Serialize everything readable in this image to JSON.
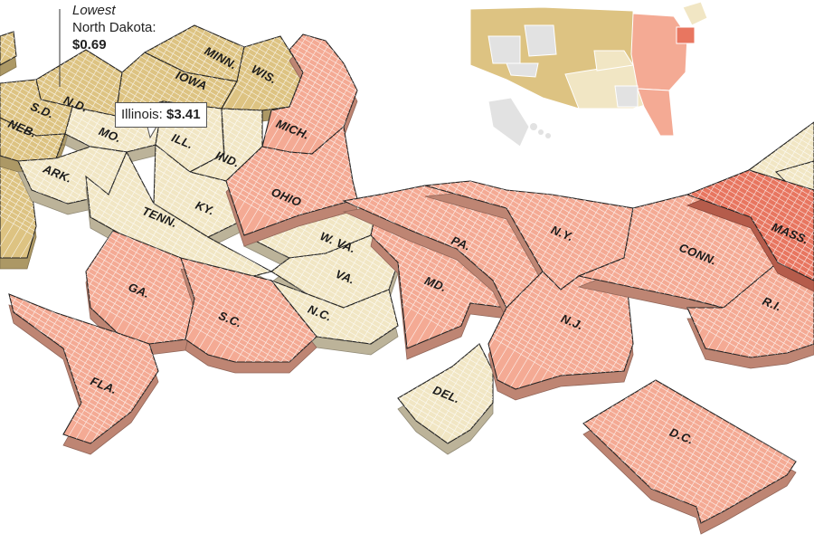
{
  "colors": {
    "low": "#ddc382",
    "mid": "#f1e6c4",
    "high": "#f4aa94",
    "highest": "#e87660",
    "gray": "#e2e2e2",
    "grid_line": "#ffffff",
    "border": "#222222"
  },
  "callouts": {
    "lowest": {
      "heading": "Lowest",
      "state": "North Dakota:",
      "price": "$0.69"
    },
    "illinois": {
      "state": "Illinois:",
      "price": "$3.41"
    }
  },
  "states": [
    {
      "label": "N.D.",
      "category": "low"
    },
    {
      "label": "S.D.",
      "category": "low"
    },
    {
      "label": "NEB.",
      "category": "low"
    },
    {
      "label": "MINN.",
      "category": "low"
    },
    {
      "label": "IOWA",
      "category": "low"
    },
    {
      "label": "WIS.",
      "category": "low"
    },
    {
      "label": "MO.",
      "category": "mid"
    },
    {
      "label": "ILL.",
      "category": "mid"
    },
    {
      "label": "IND.",
      "category": "mid"
    },
    {
      "label": "ARK.",
      "category": "mid"
    },
    {
      "label": "KY.",
      "category": "mid"
    },
    {
      "label": "TENN.",
      "category": "mid"
    },
    {
      "label": "W. VA.",
      "category": "mid"
    },
    {
      "label": "VA.",
      "category": "mid"
    },
    {
      "label": "N.C.",
      "category": "mid"
    },
    {
      "label": "DEL.",
      "category": "mid"
    },
    {
      "label": "MICH.",
      "category": "high"
    },
    {
      "label": "OHIO",
      "category": "high"
    },
    {
      "label": "GA.",
      "category": "high"
    },
    {
      "label": "S.C.",
      "category": "high"
    },
    {
      "label": "FLA.",
      "category": "high"
    },
    {
      "label": "MD.",
      "category": "high"
    },
    {
      "label": "PA.",
      "category": "high"
    },
    {
      "label": "N.Y.",
      "category": "high"
    },
    {
      "label": "N.J.",
      "category": "high"
    },
    {
      "label": "CONN.",
      "category": "high"
    },
    {
      "label": "R.I.",
      "category": "high"
    },
    {
      "label": "D.C.",
      "category": "high"
    },
    {
      "label": "MASS.",
      "category": "highest"
    }
  ]
}
